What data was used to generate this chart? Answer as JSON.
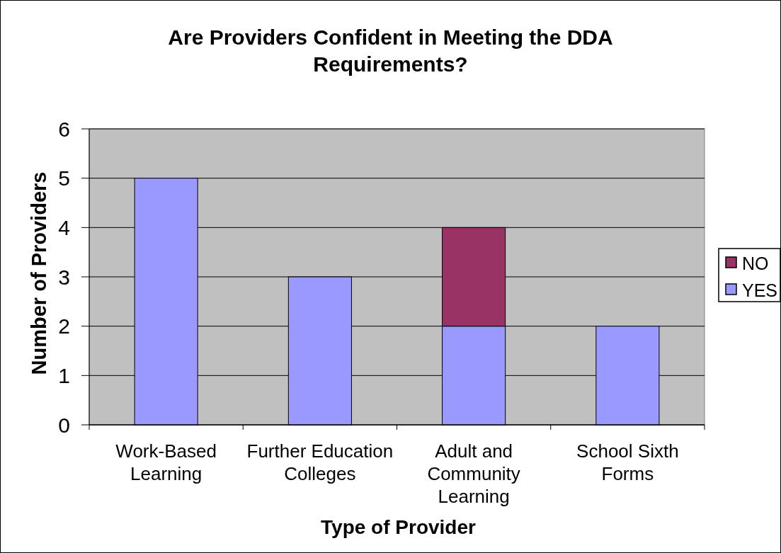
{
  "chart_data": {
    "type": "bar",
    "title": "Are Providers Confident in Meeting the DDA Requirements?",
    "xlabel": "Type of Provider",
    "ylabel": "Number of Providers",
    "categories": [
      "Work-Based Learning",
      "Further Education Colleges",
      "Adult and Community Learning",
      "School Sixth Forms"
    ],
    "series": [
      {
        "name": "YES",
        "color": "#9999ff",
        "values": [
          5,
          3,
          2,
          2
        ]
      },
      {
        "name": "NO",
        "color": "#993366",
        "values": [
          null,
          null,
          2,
          null
        ]
      }
    ],
    "stacked": true,
    "ylim": [
      0,
      6
    ],
    "yticks": [
      0,
      1,
      2,
      3,
      4,
      5,
      6
    ],
    "grid": "y",
    "legend": "right"
  }
}
